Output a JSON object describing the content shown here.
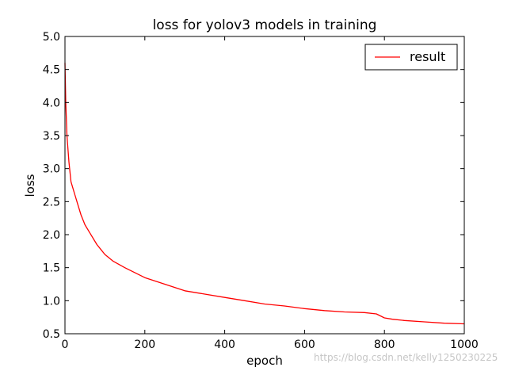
{
  "chart_data": {
    "type": "line",
    "title": "loss for yolov3 models in training",
    "xlabel": "epoch",
    "ylabel": "loss",
    "xlim": [
      0,
      1000
    ],
    "ylim": [
      0.5,
      5.0
    ],
    "xticks": [
      "0",
      "200",
      "400",
      "600",
      "800",
      "1000"
    ],
    "yticks": [
      "0.5",
      "1.0",
      "1.5",
      "2.0",
      "2.5",
      "3.0",
      "3.5",
      "4.0",
      "4.5",
      "5.0"
    ],
    "grid": false,
    "legend": {
      "position": "top-right"
    },
    "series": [
      {
        "name": "result",
        "color": "#ff0000",
        "x": [
          0,
          2,
          5,
          10,
          15,
          20,
          25,
          30,
          40,
          50,
          60,
          80,
          100,
          120,
          150,
          200,
          250,
          300,
          350,
          400,
          450,
          500,
          550,
          600,
          650,
          700,
          750,
          780,
          800,
          820,
          850,
          900,
          950,
          1000
        ],
        "y": [
          4.6,
          4.0,
          3.5,
          3.1,
          2.8,
          2.7,
          2.6,
          2.5,
          2.3,
          2.15,
          2.05,
          1.85,
          1.7,
          1.6,
          1.5,
          1.35,
          1.25,
          1.15,
          1.1,
          1.05,
          1.0,
          0.95,
          0.92,
          0.88,
          0.85,
          0.83,
          0.82,
          0.8,
          0.74,
          0.72,
          0.7,
          0.68,
          0.66,
          0.65
        ]
      }
    ]
  },
  "watermark": "https://blog.csdn.net/kelly1250230225"
}
